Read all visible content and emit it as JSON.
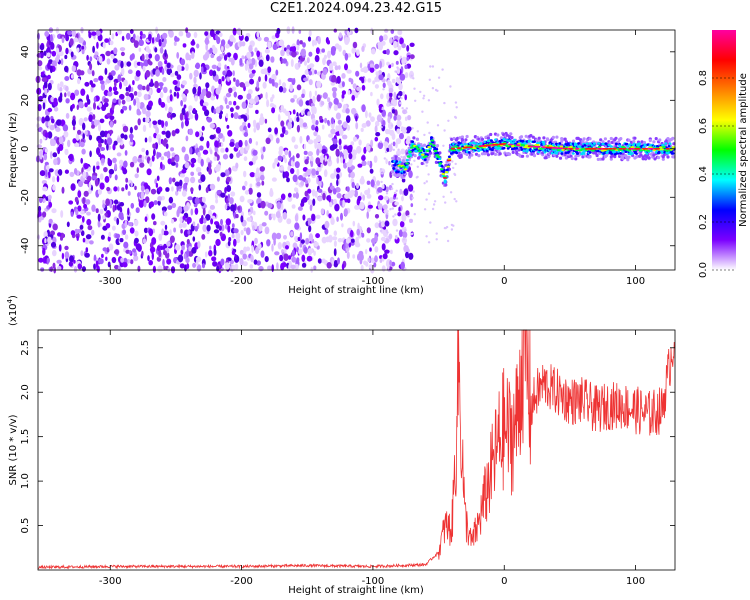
{
  "title": "C2E1.2024.094.23.42.G15",
  "chart_data": [
    {
      "type": "heatmap",
      "xlabel": "Height of straight line (km)",
      "ylabel": "Frequency (Hz)",
      "xlim": [
        -355,
        130
      ],
      "ylim": [
        -50,
        49
      ],
      "xticks": [
        -300,
        -200,
        -100,
        0,
        100
      ],
      "yticks": [
        -40,
        -20,
        0,
        20,
        40
      ],
      "colorbar": {
        "label": "Normalized spectral amplitude",
        "range": [
          0.0,
          1.0
        ],
        "ticks": [
          "0.0",
          "0.2",
          "0.4",
          "0.6",
          "0.8"
        ],
        "colormap": [
          "#ffffff",
          "#7b00ff",
          "#0000ff",
          "#00ffff",
          "#00ff00",
          "#ffff00",
          "#ff8000",
          "#ff0000",
          "#ff00a0"
        ]
      },
      "description_regions": {
        "noise_region_x": [
          -355,
          -80
        ],
        "signal_track": [
          {
            "x": -85,
            "y": -7
          },
          {
            "x": -75,
            "y": -8
          },
          {
            "x": -70,
            "y": 2
          },
          {
            "x": -60,
            "y": -3
          },
          {
            "x": -55,
            "y": 4
          },
          {
            "x": -45,
            "y": -12
          },
          {
            "x": -40,
            "y": 0
          },
          {
            "x": -20,
            "y": 1
          },
          {
            "x": 0,
            "y": 2
          },
          {
            "x": 20,
            "y": 1
          },
          {
            "x": 50,
            "y": 0
          },
          {
            "x": 100,
            "y": 0
          },
          {
            "x": 130,
            "y": 0
          }
        ]
      }
    },
    {
      "type": "line",
      "xlabel": "Height of straight line (km)",
      "ylabel": "SNR (10 * v/v)",
      "yscale_note": "(x10",
      "yscale_exp": "4",
      "yscale_close": ")",
      "xlim": [
        -355,
        130
      ],
      "ylim": [
        0,
        2.7
      ],
      "xticks": [
        -300,
        -200,
        -100,
        0,
        100
      ],
      "yticks": [
        0.5,
        1.0,
        1.5,
        2.0,
        2.5
      ],
      "ytick_labels": [
        "0.5",
        "1.0",
        "1.5",
        "2.0",
        "2.5"
      ],
      "color": "#ee3333",
      "series": [
        {
          "x": [
            -355,
            -300,
            -250,
            -200,
            -150,
            -100,
            -80,
            -60,
            -50,
            -45,
            -40,
            -37,
            -35,
            -30,
            -25,
            -20,
            -15,
            -10,
            -5,
            0,
            5,
            10,
            15,
            20,
            25,
            30,
            40,
            50,
            60,
            70,
            80,
            90,
            100,
            110,
            120,
            130
          ],
          "y": [
            0.03,
            0.04,
            0.04,
            0.04,
            0.05,
            0.04,
            0.05,
            0.06,
            0.2,
            0.5,
            0.45,
            1.3,
            2.4,
            0.6,
            0.3,
            0.5,
            0.8,
            1.1,
            1.4,
            1.6,
            1.5,
            1.7,
            2.7,
            1.8,
            2.0,
            2.1,
            2.0,
            1.9,
            1.9,
            1.8,
            1.85,
            1.85,
            1.8,
            1.75,
            1.8,
            2.65
          ]
        }
      ]
    }
  ]
}
